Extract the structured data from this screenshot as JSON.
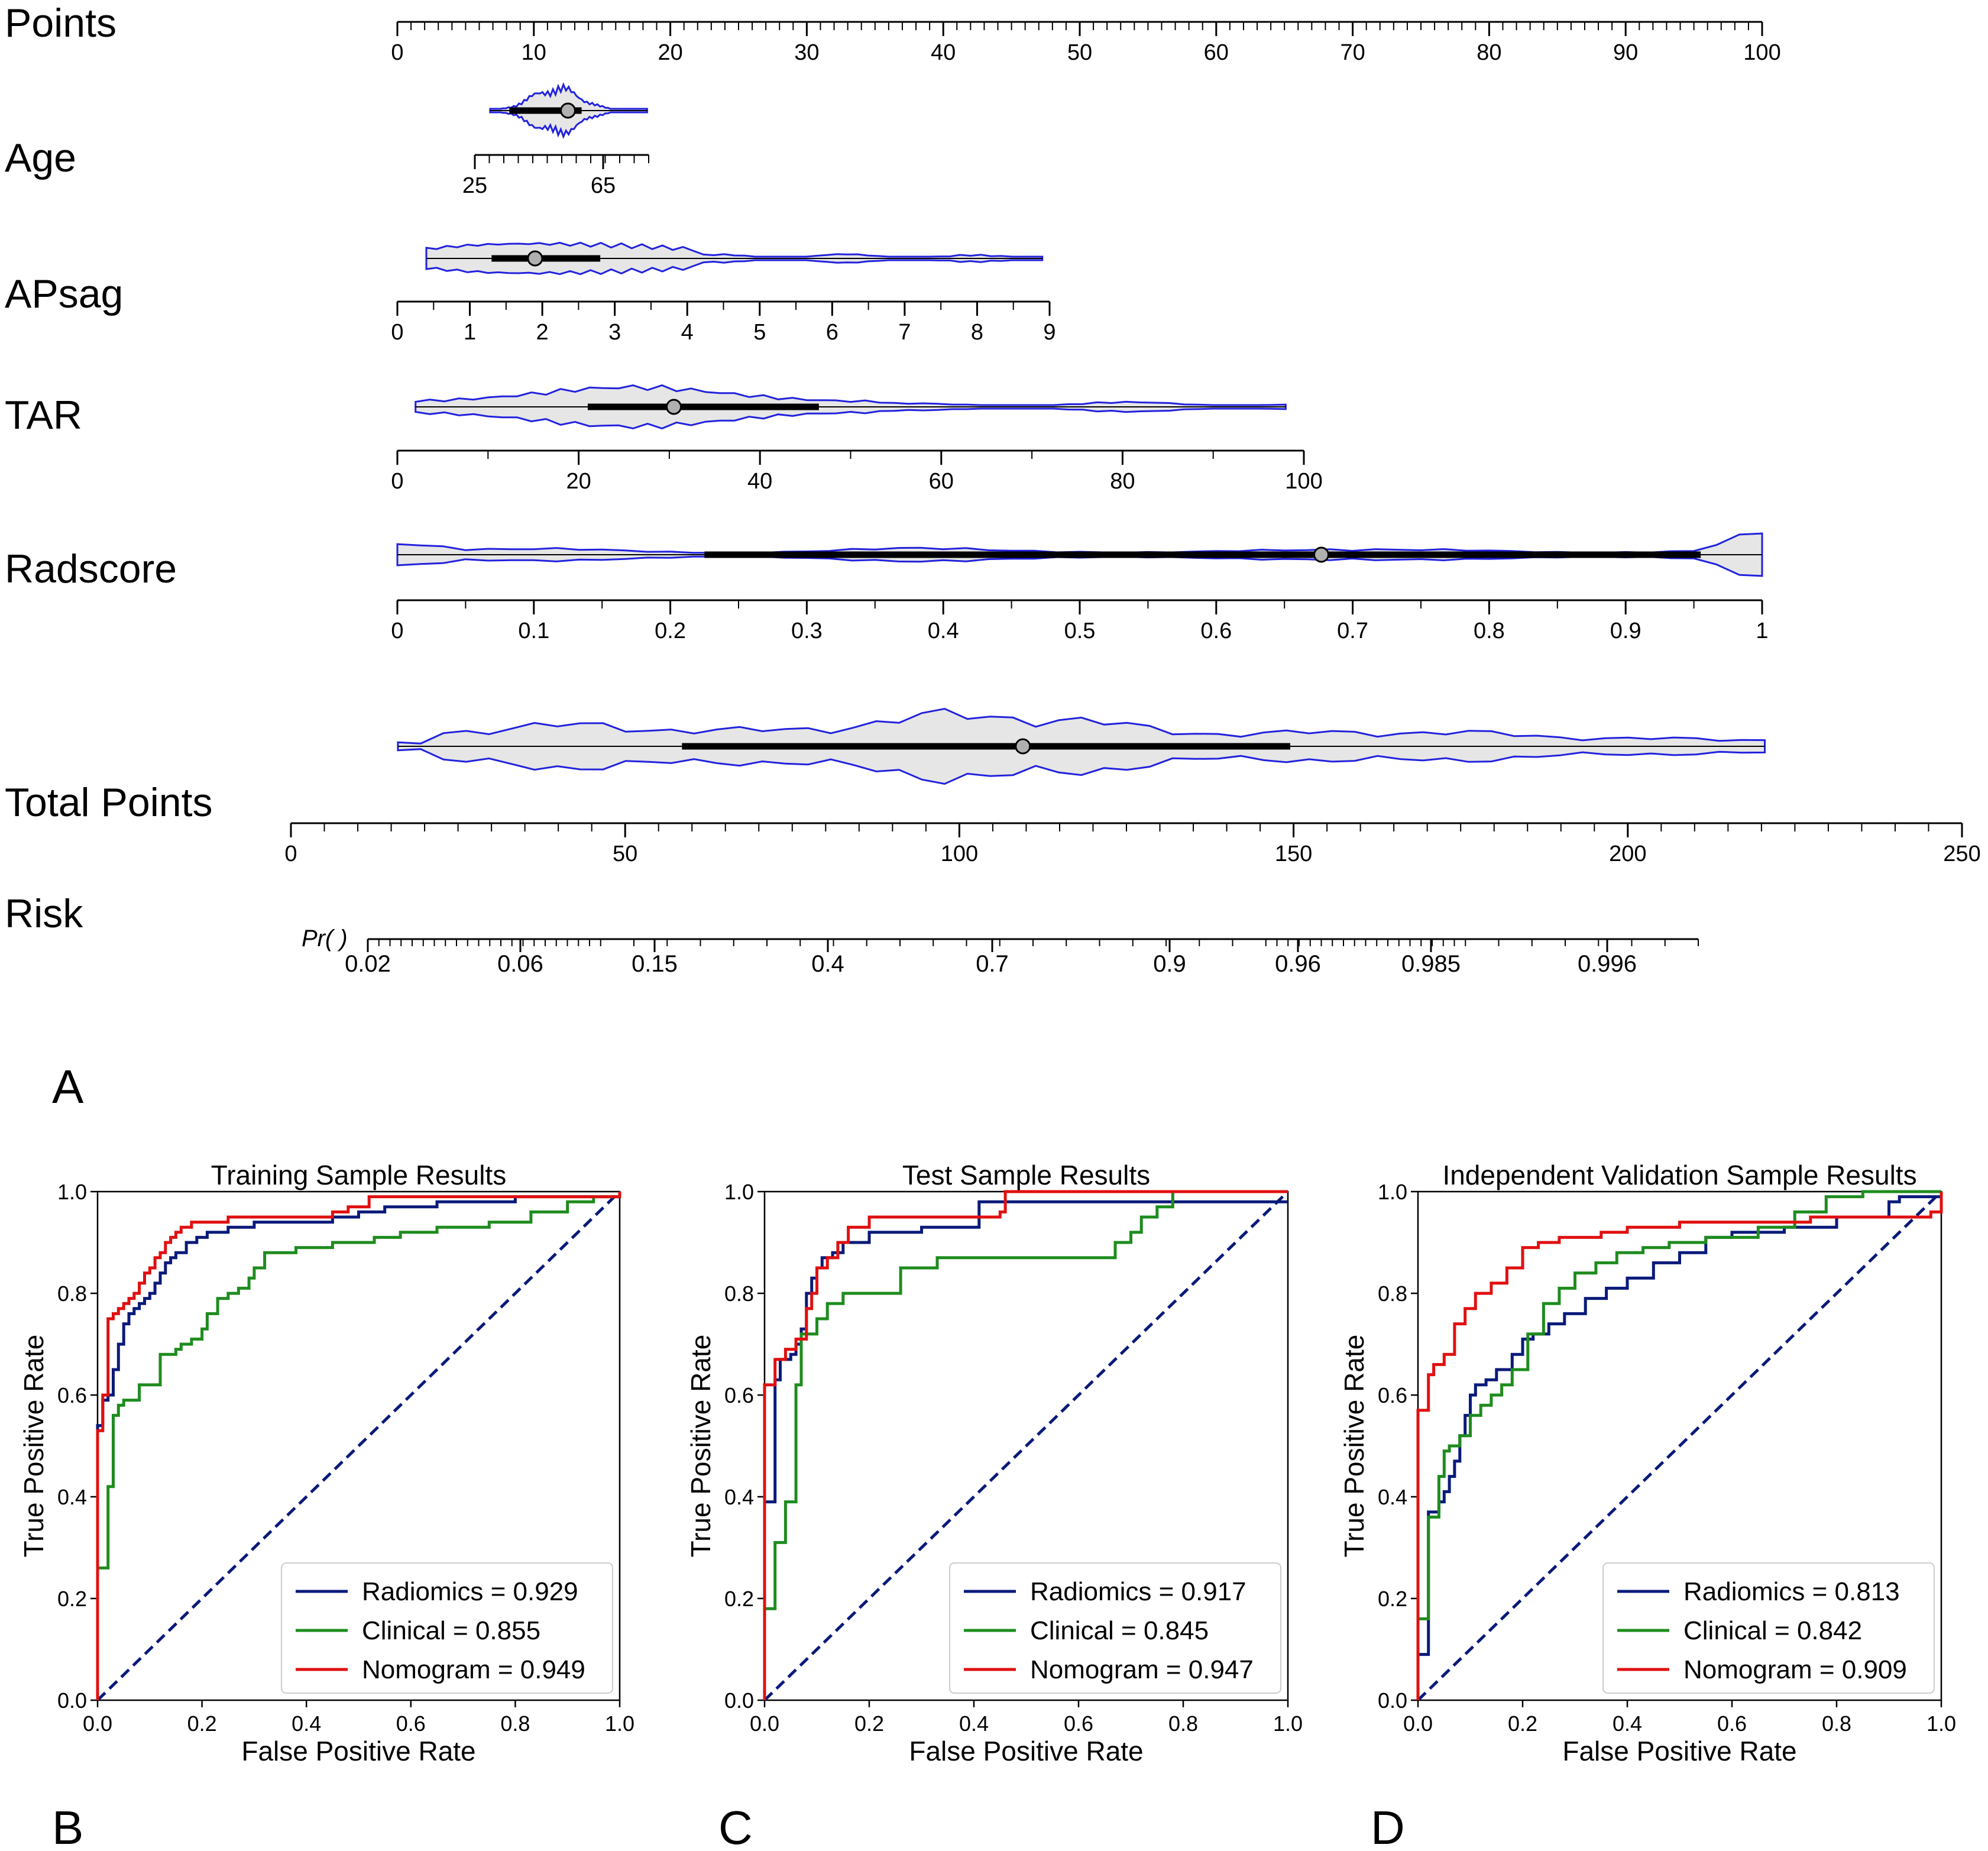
{
  "figure": {
    "colors": {
      "violin_stroke": "#2222dd",
      "violin_fill": "#e6e6e6",
      "box": "#000000",
      "median_marker": "#b0b0b0",
      "radiomics": "#0a1a7a",
      "clinical": "#1e8c1e",
      "nomogram": "#e01010",
      "reference": "#0a1a7a"
    }
  },
  "nomogram": {
    "panel_label": "A",
    "rows": [
      {
        "name": "Points",
        "label": "Points",
        "ticks": [
          "0",
          "10",
          "20",
          "30",
          "40",
          "50",
          "60",
          "70",
          "80",
          "90",
          "100"
        ]
      },
      {
        "name": "Age",
        "label": "Age",
        "ticks": [
          "25",
          "65"
        ],
        "violin": {
          "q1": 8.2,
          "median": 12.5,
          "q3": 13.5,
          "start": 6.8,
          "end": 18.3
        }
      },
      {
        "name": "APsag",
        "label": "APsag",
        "ticks": [
          "0",
          "1",
          "2",
          "3",
          "4",
          "5",
          "6",
          "7",
          "8",
          "9"
        ],
        "violin": {
          "q1": 1.3,
          "median": 1.9,
          "q3": 2.8,
          "start": 0.4,
          "end": 8.9
        }
      },
      {
        "name": "TAR",
        "label": "TAR",
        "ticks": [
          "0",
          "20",
          "40",
          "60",
          "80",
          "100"
        ],
        "violin": {
          "q1": 21,
          "median": 30.5,
          "q3": 46.5,
          "start": 2,
          "end": 98
        }
      },
      {
        "name": "Radscore",
        "label": "Radscore",
        "ticks": [
          "0",
          "0.1",
          "0.2",
          "0.3",
          "0.4",
          "0.5",
          "0.6",
          "0.7",
          "0.8",
          "0.9",
          "1"
        ],
        "violin": {
          "q1": 0.225,
          "median": 0.677,
          "q3": 0.955,
          "start": 0.0,
          "end": 1.0
        }
      },
      {
        "name": "Total Points",
        "label": "Total  Points",
        "ticks": [
          "0",
          "50",
          "100",
          "150",
          "200",
          "250"
        ],
        "violin": {
          "q1": 58.5,
          "median": 109.5,
          "q3": 149.5,
          "start": 16,
          "end": 220.5
        }
      },
      {
        "name": "Risk",
        "label": "Risk",
        "prefix": "Pr(   )",
        "ticks": [
          "0.02",
          "0.06",
          "0.15",
          "0.4",
          "0.7",
          "0.9",
          "0.96",
          "0.985",
          "0.996"
        ]
      }
    ]
  },
  "chart_data": [
    {
      "type": "line",
      "panel_label": "B",
      "title": "Training Sample Results",
      "xlabel": "False Positive Rate",
      "ylabel": "True Positive Rate",
      "xlim": [
        0,
        1
      ],
      "ylim": [
        0,
        1
      ],
      "x_ticks": [
        "0.0",
        "0.2",
        "0.4",
        "0.6",
        "0.8",
        "1.0"
      ],
      "y_ticks": [
        "0.0",
        "0.2",
        "0.4",
        "0.6",
        "0.8",
        "1.0"
      ],
      "legend_position": "lower-right",
      "series": [
        {
          "name": "Radiomics",
          "legend": "Radiomics = 0.929",
          "auc": 0.929,
          "x": [
            0,
            0,
            0.01,
            0.01,
            0.02,
            0.02,
            0.03,
            0.03,
            0.04,
            0.04,
            0.05,
            0.05,
            0.06,
            0.06,
            0.07,
            0.08,
            0.09,
            0.1,
            0.11,
            0.12,
            0.13,
            0.14,
            0.15,
            0.17,
            0.19,
            0.21,
            0.25,
            0.3,
            0.38,
            0.45,
            0.5,
            0.55,
            0.65,
            0.8,
            1.0
          ],
          "y": [
            0,
            0.54,
            0.54,
            0.59,
            0.59,
            0.6,
            0.6,
            0.65,
            0.65,
            0.7,
            0.7,
            0.74,
            0.74,
            0.76,
            0.77,
            0.78,
            0.79,
            0.8,
            0.82,
            0.84,
            0.86,
            0.87,
            0.88,
            0.9,
            0.91,
            0.92,
            0.93,
            0.94,
            0.94,
            0.95,
            0.96,
            0.97,
            0.98,
            0.99,
            1.0
          ]
        },
        {
          "name": "Clinical",
          "legend": "Clinical = 0.855",
          "auc": 0.855,
          "x": [
            0,
            0,
            0.02,
            0.02,
            0.03,
            0.03,
            0.04,
            0.04,
            0.05,
            0.05,
            0.08,
            0.08,
            0.12,
            0.12,
            0.15,
            0.16,
            0.18,
            0.2,
            0.21,
            0.23,
            0.25,
            0.27,
            0.29,
            0.3,
            0.32,
            0.38,
            0.45,
            0.53,
            0.58,
            0.65,
            0.75,
            0.83,
            0.9,
            0.95,
            1.0
          ],
          "y": [
            0,
            0.26,
            0.26,
            0.42,
            0.42,
            0.56,
            0.56,
            0.58,
            0.58,
            0.59,
            0.59,
            0.62,
            0.62,
            0.68,
            0.69,
            0.7,
            0.71,
            0.73,
            0.76,
            0.79,
            0.8,
            0.81,
            0.83,
            0.85,
            0.88,
            0.89,
            0.9,
            0.91,
            0.92,
            0.93,
            0.94,
            0.96,
            0.98,
            0.99,
            1.0
          ]
        },
        {
          "name": "Nomogram",
          "legend": "Nomogram = 0.949",
          "auc": 0.949,
          "x": [
            0,
            0,
            0.01,
            0.01,
            0.02,
            0.02,
            0.03,
            0.04,
            0.05,
            0.06,
            0.07,
            0.08,
            0.09,
            0.1,
            0.11,
            0.12,
            0.13,
            0.14,
            0.15,
            0.16,
            0.18,
            0.25,
            0.33,
            0.45,
            0.48,
            0.52,
            0.7,
            1.0
          ],
          "y": [
            0,
            0.53,
            0.53,
            0.6,
            0.6,
            0.75,
            0.76,
            0.77,
            0.78,
            0.79,
            0.8,
            0.82,
            0.84,
            0.85,
            0.87,
            0.88,
            0.9,
            0.91,
            0.92,
            0.93,
            0.94,
            0.95,
            0.95,
            0.96,
            0.97,
            0.99,
            0.99,
            1.0
          ]
        }
      ]
    },
    {
      "type": "line",
      "panel_label": "C",
      "title": "Test Sample Results",
      "xlabel": "False Positive Rate",
      "ylabel": "True Positive Rate",
      "xlim": [
        0,
        1
      ],
      "ylim": [
        0,
        1
      ],
      "x_ticks": [
        "0.0",
        "0.2",
        "0.4",
        "0.6",
        "0.8",
        "1.0"
      ],
      "y_ticks": [
        "0.0",
        "0.2",
        "0.4",
        "0.6",
        "0.8",
        "1.0"
      ],
      "legend_position": "lower-right",
      "series": [
        {
          "name": "Radiomics",
          "legend": "Radiomics = 0.917",
          "auc": 0.917,
          "x": [
            0,
            0,
            0.02,
            0.02,
            0.03,
            0.05,
            0.06,
            0.07,
            0.08,
            0.09,
            0.1,
            0.11,
            0.13,
            0.15,
            0.2,
            0.3,
            0.41,
            1.0
          ],
          "y": [
            0,
            0.39,
            0.39,
            0.63,
            0.67,
            0.68,
            0.7,
            0.73,
            0.8,
            0.83,
            0.85,
            0.87,
            0.88,
            0.9,
            0.92,
            0.93,
            0.98,
            0.98
          ]
        },
        {
          "name": "Clinical",
          "legend": "Clinical = 0.845",
          "auc": 0.845,
          "x": [
            0,
            0,
            0.01,
            0.01,
            0.02,
            0.02,
            0.04,
            0.04,
            0.06,
            0.06,
            0.07,
            0.07,
            0.1,
            0.12,
            0.15,
            0.18,
            0.26,
            0.33,
            0.6,
            0.67,
            0.68,
            0.7,
            0.72,
            0.75,
            0.78,
            1.0
          ],
          "y": [
            0,
            0.18,
            0.18,
            0.18,
            0.18,
            0.31,
            0.31,
            0.39,
            0.39,
            0.62,
            0.62,
            0.72,
            0.75,
            0.78,
            0.8,
            0.8,
            0.85,
            0.87,
            0.87,
            0.9,
            0.9,
            0.92,
            0.95,
            0.97,
            1.0,
            1.0
          ]
        },
        {
          "name": "Nomogram",
          "legend": "Nomogram = 0.947",
          "auc": 0.947,
          "x": [
            0,
            0,
            0.02,
            0.04,
            0.06,
            0.08,
            0.09,
            0.1,
            0.12,
            0.14,
            0.16,
            0.2,
            0.3,
            0.45,
            0.46,
            1.0
          ],
          "y": [
            0,
            0.62,
            0.67,
            0.69,
            0.71,
            0.77,
            0.8,
            0.85,
            0.87,
            0.9,
            0.93,
            0.95,
            0.95,
            0.96,
            1.0,
            1.0
          ]
        }
      ]
    },
    {
      "type": "line",
      "panel_label": "D",
      "title": "Independent Validation Sample Results",
      "xlabel": "False Positive Rate",
      "ylabel": "True Positive Rate",
      "xlim": [
        0,
        1
      ],
      "ylim": [
        0,
        1
      ],
      "x_ticks": [
        "0.0",
        "0.2",
        "0.4",
        "0.6",
        "0.8",
        "1.0"
      ],
      "y_ticks": [
        "0.0",
        "0.2",
        "0.4",
        "0.6",
        "0.8",
        "1.0"
      ],
      "legend_position": "lower-right",
      "series": [
        {
          "name": "Radiomics",
          "legend": "Radiomics = 0.813",
          "auc": 0.813,
          "x": [
            0,
            0,
            0.02,
            0.02,
            0.04,
            0.05,
            0.06,
            0.07,
            0.08,
            0.09,
            0.1,
            0.11,
            0.13,
            0.15,
            0.18,
            0.2,
            0.22,
            0.25,
            0.28,
            0.32,
            0.36,
            0.4,
            0.45,
            0.5,
            0.55,
            0.6,
            0.7,
            0.8,
            0.9,
            0.92,
            1.0
          ],
          "y": [
            0,
            0.09,
            0.09,
            0.37,
            0.39,
            0.41,
            0.44,
            0.47,
            0.52,
            0.56,
            0.6,
            0.62,
            0.63,
            0.65,
            0.68,
            0.71,
            0.72,
            0.74,
            0.76,
            0.79,
            0.81,
            0.83,
            0.86,
            0.88,
            0.91,
            0.92,
            0.93,
            0.95,
            0.98,
            0.99,
            1.0
          ]
        },
        {
          "name": "Clinical",
          "legend": "Clinical = 0.842",
          "auc": 0.842,
          "x": [
            0,
            0,
            0.02,
            0.02,
            0.04,
            0.05,
            0.06,
            0.08,
            0.1,
            0.12,
            0.14,
            0.16,
            0.18,
            0.21,
            0.24,
            0.27,
            0.3,
            0.34,
            0.38,
            0.43,
            0.48,
            0.55,
            0.65,
            0.72,
            0.78,
            0.85,
            1.0
          ],
          "y": [
            0,
            0.16,
            0.16,
            0.36,
            0.44,
            0.49,
            0.5,
            0.52,
            0.56,
            0.58,
            0.6,
            0.62,
            0.65,
            0.72,
            0.78,
            0.81,
            0.84,
            0.86,
            0.88,
            0.89,
            0.9,
            0.91,
            0.93,
            0.96,
            0.99,
            1.0,
            1.0
          ]
        },
        {
          "name": "Nomogram",
          "legend": "Nomogram = 0.909",
          "auc": 0.909,
          "x": [
            0,
            0,
            0.02,
            0.03,
            0.05,
            0.07,
            0.09,
            0.11,
            0.14,
            0.17,
            0.2,
            0.23,
            0.27,
            0.35,
            0.4,
            0.5,
            0.6,
            0.75,
            0.85,
            0.98,
            1.0
          ],
          "y": [
            0,
            0.57,
            0.64,
            0.66,
            0.68,
            0.74,
            0.77,
            0.8,
            0.82,
            0.85,
            0.89,
            0.9,
            0.91,
            0.92,
            0.93,
            0.94,
            0.94,
            0.95,
            0.95,
            0.96,
            1.0
          ]
        }
      ]
    }
  ]
}
